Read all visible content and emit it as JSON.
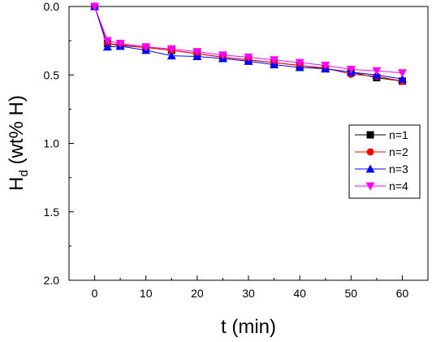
{
  "chart_data": {
    "type": "line",
    "xlabel": "t (min)",
    "ylabel_main": "H",
    "ylabel_sub": "d",
    "ylabel_rest": " (wt% H)",
    "xlim": [
      -5,
      65
    ],
    "ylim": [
      0,
      2
    ],
    "y_inverted": true,
    "grid": false,
    "legend_position": "right",
    "xticks": [
      0,
      10,
      20,
      30,
      40,
      50,
      60
    ],
    "xtick_labels": [
      "0",
      "10",
      "20",
      "30",
      "40",
      "50",
      "60"
    ],
    "yticks": [
      0,
      0.5,
      1,
      1.5,
      2
    ],
    "ytick_labels": [
      "0.0",
      "0.5",
      "1.0",
      "1.5",
      "2.0"
    ],
    "series": [
      {
        "name": "n=1",
        "marker": "square",
        "color": "#000000",
        "x": [
          0,
          2.5,
          5,
          10,
          15,
          20,
          25,
          30,
          35,
          40,
          45,
          50,
          55,
          60
        ],
        "y": [
          0,
          0.27,
          0.285,
          0.3,
          0.32,
          0.345,
          0.37,
          0.39,
          0.41,
          0.43,
          0.455,
          0.48,
          0.52,
          0.545
        ]
      },
      {
        "name": "n=2",
        "marker": "circle",
        "color": "#ff0000",
        "x": [
          0,
          2.5,
          5,
          10,
          15,
          20,
          25,
          30,
          35,
          40,
          45,
          50,
          55,
          60
        ],
        "y": [
          0,
          0.27,
          0.28,
          0.3,
          0.32,
          0.345,
          0.37,
          0.39,
          0.41,
          0.43,
          0.45,
          0.495,
          0.51,
          0.545
        ]
      },
      {
        "name": "n=3",
        "marker": "triangle-up",
        "color": "#0000ff",
        "x": [
          0,
          2.5,
          5,
          10,
          15,
          20,
          25,
          30,
          35,
          40,
          45,
          50,
          55,
          60
        ],
        "y": [
          0,
          0.295,
          0.29,
          0.32,
          0.36,
          0.365,
          0.38,
          0.4,
          0.425,
          0.445,
          0.455,
          0.48,
          0.5,
          0.53
        ]
      },
      {
        "name": "n=4",
        "marker": "triangle-down",
        "color": "#ff00ff",
        "x": [
          0,
          2.5,
          5,
          10,
          15,
          20,
          25,
          30,
          35,
          40,
          45,
          50,
          55,
          60
        ],
        "y": [
          0,
          0.25,
          0.27,
          0.295,
          0.31,
          0.33,
          0.355,
          0.37,
          0.39,
          0.41,
          0.43,
          0.46,
          0.47,
          0.485
        ]
      }
    ]
  }
}
